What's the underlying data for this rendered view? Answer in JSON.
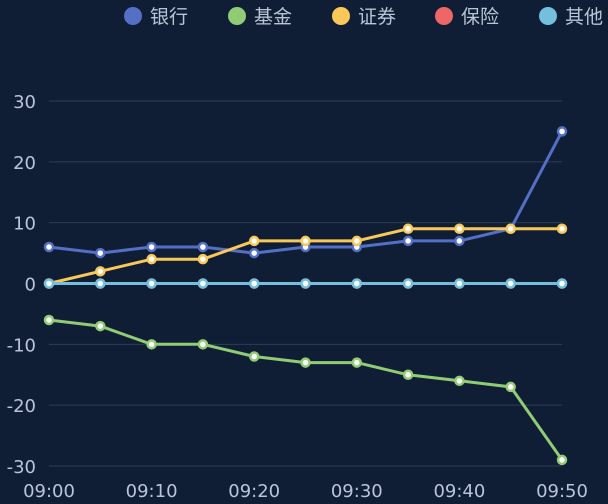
{
  "chart_data": {
    "type": "line",
    "x": [
      "09:00",
      "09:05",
      "09:10",
      "09:15",
      "09:20",
      "09:25",
      "09:30",
      "09:35",
      "09:40",
      "09:45",
      "09:50"
    ],
    "x_tick_labels": [
      "09:00",
      "09:10",
      "09:20",
      "09:30",
      "09:40",
      "09:50"
    ],
    "ylim": [
      -30,
      30
    ],
    "y_ticks": [
      30,
      20,
      10,
      0,
      -10,
      -20,
      -30
    ],
    "grid": true,
    "legend_position": "top",
    "series": [
      {
        "name": "银行",
        "color": "#5470c6",
        "values": [
          6,
          5,
          6,
          6,
          5,
          6,
          6,
          7,
          7,
          9,
          25
        ]
      },
      {
        "name": "基金",
        "color": "#91cc75",
        "values": [
          -6,
          -7,
          -10,
          -10,
          -12,
          -13,
          -13,
          -15,
          -16,
          -17,
          -29
        ]
      },
      {
        "name": "证券",
        "color": "#fac858",
        "values": [
          0,
          2,
          4,
          4,
          7,
          7,
          7,
          9,
          9,
          9,
          9
        ]
      },
      {
        "name": "保险",
        "color": "#ee6666",
        "values": [
          0,
          0,
          0,
          0,
          0,
          0,
          0,
          0,
          0,
          0,
          0
        ]
      },
      {
        "name": "其他",
        "color": "#73c0de",
        "values": [
          0,
          0,
          0,
          0,
          0,
          0,
          0,
          0,
          0,
          0,
          0
        ]
      }
    ],
    "colors": {
      "background": "#0f1e35",
      "grid_line": "#2e3d55",
      "text": "#b9c4d6"
    }
  }
}
